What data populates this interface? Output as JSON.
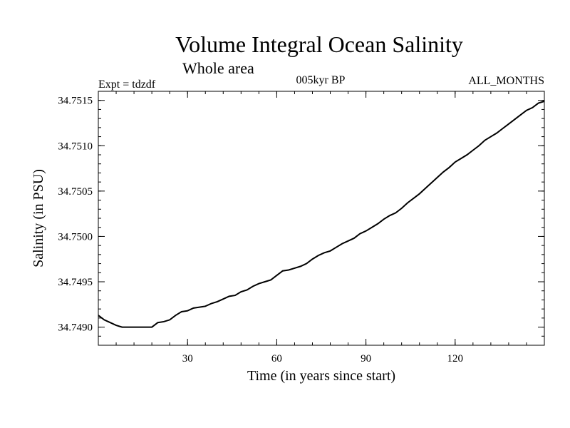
{
  "chart_data": {
    "type": "line",
    "title": "Volume Integral Ocean Salinity",
    "subtitle": "Whole area",
    "experiment_label": "Expt = tdzdf",
    "period_label": "005kyr BP",
    "months_label": "ALL_MONTHS",
    "xlabel": "Time (in years since start)",
    "ylabel": "Salinity (in PSU)",
    "xlim": [
      0,
      150
    ],
    "ylim": [
      34.7488,
      34.7516
    ],
    "x_ticks": [
      30,
      60,
      90,
      120
    ],
    "x_tick_labels": [
      "30",
      "60",
      "90",
      "120"
    ],
    "y_ticks": [
      34.749,
      34.7495,
      34.75,
      34.7505,
      34.751,
      34.7515
    ],
    "y_tick_labels": [
      "34.7490",
      "34.7495",
      "34.7500",
      "34.7505",
      "34.7510",
      "34.7515"
    ],
    "grid": false,
    "series": [
      {
        "name": "Salinity",
        "x": [
          0,
          2,
          4,
          6,
          8,
          10,
          12,
          14,
          16,
          18,
          20,
          22,
          24,
          26,
          28,
          30,
          32,
          34,
          36,
          38,
          40,
          42,
          44,
          46,
          48,
          50,
          52,
          54,
          56,
          58,
          60,
          62,
          64,
          66,
          68,
          70,
          72,
          74,
          76,
          78,
          80,
          82,
          84,
          86,
          88,
          90,
          92,
          94,
          96,
          98,
          100,
          102,
          104,
          106,
          108,
          110,
          112,
          114,
          116,
          118,
          120,
          122,
          124,
          126,
          128,
          130,
          132,
          134,
          136,
          138,
          140,
          142,
          144,
          146,
          148,
          150
        ],
        "values": [
          34.74913,
          34.74908,
          34.74905,
          34.74902,
          34.749,
          34.749,
          34.749,
          34.749,
          34.749,
          34.749,
          34.74905,
          34.74906,
          34.74908,
          34.74913,
          34.74917,
          34.74918,
          34.74921,
          34.74922,
          34.74923,
          34.74926,
          34.74928,
          34.74931,
          34.74934,
          34.74935,
          34.74939,
          34.74941,
          34.74945,
          34.74948,
          34.7495,
          34.74952,
          34.74957,
          34.74962,
          34.74963,
          34.74965,
          34.74967,
          34.7497,
          34.74975,
          34.74979,
          34.74982,
          34.74984,
          34.74988,
          34.74992,
          34.74995,
          34.74998,
          34.75003,
          34.75006,
          34.7501,
          34.75014,
          34.75019,
          34.75023,
          34.75026,
          34.75031,
          34.75037,
          34.75042,
          34.75047,
          34.75053,
          34.75059,
          34.75065,
          34.75071,
          34.75076,
          34.75082,
          34.75086,
          34.7509,
          34.75095,
          34.751,
          34.75106,
          34.7511,
          34.75114,
          34.75119,
          34.75124,
          34.75129,
          34.75134,
          34.75139,
          34.75142,
          34.75147,
          34.75149
        ]
      }
    ]
  }
}
